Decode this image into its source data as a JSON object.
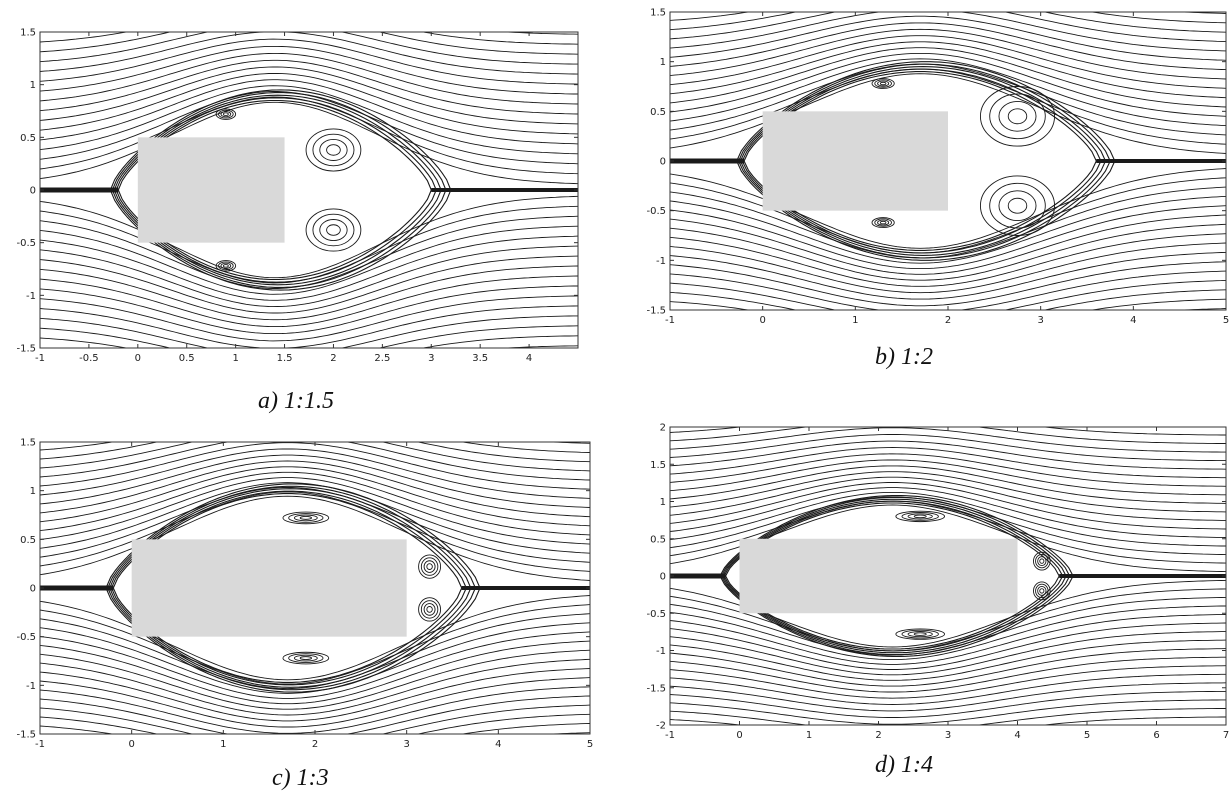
{
  "figure": {
    "colors": {
      "streamline": "#1a1a1a",
      "body_fill": "#d9d9d9",
      "frame": "#333333",
      "background": "#ffffff"
    }
  },
  "chart_data": [
    {
      "type": "streamline",
      "caption": "a) 1:1.5",
      "aspect_ratio": "1:1.5",
      "xlim": [
        -1,
        4.5
      ],
      "ylim": [
        -1.5,
        1.5
      ],
      "xticks": [
        -1,
        -0.5,
        0,
        0.5,
        1,
        1.5,
        2,
        2.5,
        3,
        3.5,
        4
      ],
      "xtick_labels": [
        "-1",
        "-0.5",
        "0",
        "0.5",
        "1",
        "1.5",
        "2",
        "2.5",
        "3",
        "3.5",
        "4"
      ],
      "yticks": [
        -1.5,
        -1,
        -0.5,
        0,
        0.5,
        1,
        1.5
      ],
      "ytick_labels": [
        "-1.5",
        "-1",
        "-0.5",
        "0",
        "0.5",
        "1",
        "1.5"
      ],
      "body": {
        "x0": 0,
        "x1": 1.5,
        "y0": -0.5,
        "y1": 0.5
      },
      "bubble": {
        "x0": -0.2,
        "x1": 3.0,
        "height": 0.85
      },
      "wake_vortices": [
        {
          "cx": 2.0,
          "cy": 0.38,
          "rx": 0.28,
          "ry": 0.2
        },
        {
          "cx": 2.0,
          "cy": -0.38,
          "rx": 0.28,
          "ry": 0.2
        },
        {
          "cx": 0.9,
          "cy": 0.72,
          "rx": 0.1,
          "ry": 0.05
        },
        {
          "cx": 0.9,
          "cy": -0.72,
          "rx": 0.1,
          "ry": 0.05
        }
      ]
    },
    {
      "type": "streamline",
      "caption": "b) 1:2",
      "aspect_ratio": "1:2",
      "xlim": [
        -1,
        5
      ],
      "ylim": [
        -1.5,
        1.5
      ],
      "xticks": [
        -1,
        0,
        1,
        2,
        3,
        4,
        5
      ],
      "xtick_labels": [
        "-1",
        "0",
        "1",
        "2",
        "3",
        "4",
        "5"
      ],
      "yticks": [
        -1.5,
        -1,
        -0.5,
        0,
        0.5,
        1,
        1.5
      ],
      "ytick_labels": [
        "-1.5",
        "-1",
        "-0.5",
        "0",
        "0.5",
        "1",
        "1.5"
      ],
      "body": {
        "x0": 0,
        "x1": 2,
        "y0": -0.5,
        "y1": 0.5
      },
      "bubble": {
        "x0": -0.2,
        "x1": 3.6,
        "height": 0.9
      },
      "wake_vortices": [
        {
          "cx": 2.75,
          "cy": 0.45,
          "rx": 0.4,
          "ry": 0.3
        },
        {
          "cx": 2.75,
          "cy": -0.45,
          "rx": 0.4,
          "ry": 0.3
        },
        {
          "cx": 1.3,
          "cy": 0.78,
          "rx": 0.12,
          "ry": 0.05
        },
        {
          "cx": 1.3,
          "cy": -0.62,
          "rx": 0.12,
          "ry": 0.05
        }
      ]
    },
    {
      "type": "streamline",
      "caption": "c) 1:3",
      "aspect_ratio": "1:3",
      "xlim": [
        -1,
        5
      ],
      "ylim": [
        -1.5,
        1.5
      ],
      "xticks": [
        -1,
        0,
        1,
        2,
        3,
        4,
        5
      ],
      "xtick_labels": [
        "-1",
        "0",
        "1",
        "2",
        "3",
        "4",
        "5"
      ],
      "yticks": [
        -1.5,
        -1,
        -0.5,
        0,
        0.5,
        1,
        1.5
      ],
      "ytick_labels": [
        "-1.5",
        "-1",
        "-0.5",
        "0",
        "0.5",
        "1",
        "1.5"
      ],
      "body": {
        "x0": 0,
        "x1": 3,
        "y0": -0.5,
        "y1": 0.5
      },
      "bubble": {
        "x0": -0.2,
        "x1": 3.6,
        "height": 0.97
      },
      "wake_vortices": [
        {
          "cx": 3.25,
          "cy": 0.22,
          "rx": 0.12,
          "ry": 0.12
        },
        {
          "cx": 3.25,
          "cy": -0.22,
          "rx": 0.12,
          "ry": 0.12
        },
        {
          "cx": 1.9,
          "cy": 0.72,
          "rx": 0.25,
          "ry": 0.06
        },
        {
          "cx": 1.9,
          "cy": -0.72,
          "rx": 0.25,
          "ry": 0.06
        }
      ]
    },
    {
      "type": "streamline",
      "caption": "d) 1:4",
      "aspect_ratio": "1:4",
      "xlim": [
        -1,
        7
      ],
      "ylim": [
        -2,
        2
      ],
      "xticks": [
        -1,
        0,
        1,
        2,
        3,
        4,
        5,
        6,
        7
      ],
      "xtick_labels": [
        "-1",
        "0",
        "1",
        "2",
        "3",
        "4",
        "5",
        "6",
        "7"
      ],
      "yticks": [
        -2,
        -1.5,
        -1,
        -0.5,
        0,
        0.5,
        1,
        1.5,
        2
      ],
      "ytick_labels": [
        "-2",
        "-1.5",
        "-1",
        "-0.5",
        "0",
        "0.5",
        "1",
        "1.5",
        "2"
      ],
      "body": {
        "x0": 0,
        "x1": 4,
        "y0": -0.5,
        "y1": 0.5
      },
      "bubble": {
        "x0": -0.2,
        "x1": 4.6,
        "height": 0.98
      },
      "wake_vortices": [
        {
          "cx": 4.35,
          "cy": 0.2,
          "rx": 0.12,
          "ry": 0.12
        },
        {
          "cx": 4.35,
          "cy": -0.2,
          "rx": 0.12,
          "ry": 0.12
        },
        {
          "cx": 2.6,
          "cy": 0.8,
          "rx": 0.35,
          "ry": 0.07
        },
        {
          "cx": 2.6,
          "cy": -0.78,
          "rx": 0.35,
          "ry": 0.07
        }
      ]
    }
  ]
}
